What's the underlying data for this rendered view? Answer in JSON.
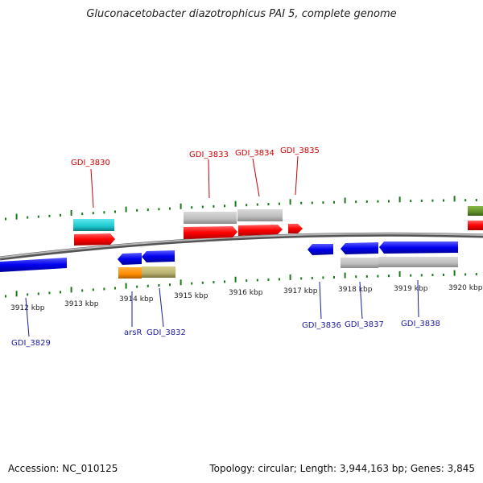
{
  "title": "Gluconacetobacter diazotrophicus PAI 5, complete genome",
  "footer": {
    "accession": "Accession: NC_010125",
    "summary": "Topology: circular; Length: 3,944,163 bp; Genes: 3,845"
  },
  "scale_labels": [
    "3912 kbp",
    "3913 kbp",
    "3914 kbp",
    "3915 kbp",
    "3916 kbp",
    "3917 kbp",
    "3918 kbp",
    "3919 kbp",
    "3920 kbp"
  ],
  "gene_labels_top": [
    "GDI_3830",
    "GDI_3833",
    "GDI_3834",
    "GDI_3835"
  ],
  "gene_labels_bottom": [
    "GDI_3829",
    "arsR",
    "GDI_3832",
    "GDI_3836",
    "GDI_3837",
    "GDI_3838"
  ],
  "colors": {
    "forward_gene": "#ff0000",
    "reverse_gene": "#0000ee",
    "label_forward": "#cc0000",
    "label_reverse": "#1a1aa0",
    "tick": "#1a7a1a",
    "backbone": "#888888"
  }
}
